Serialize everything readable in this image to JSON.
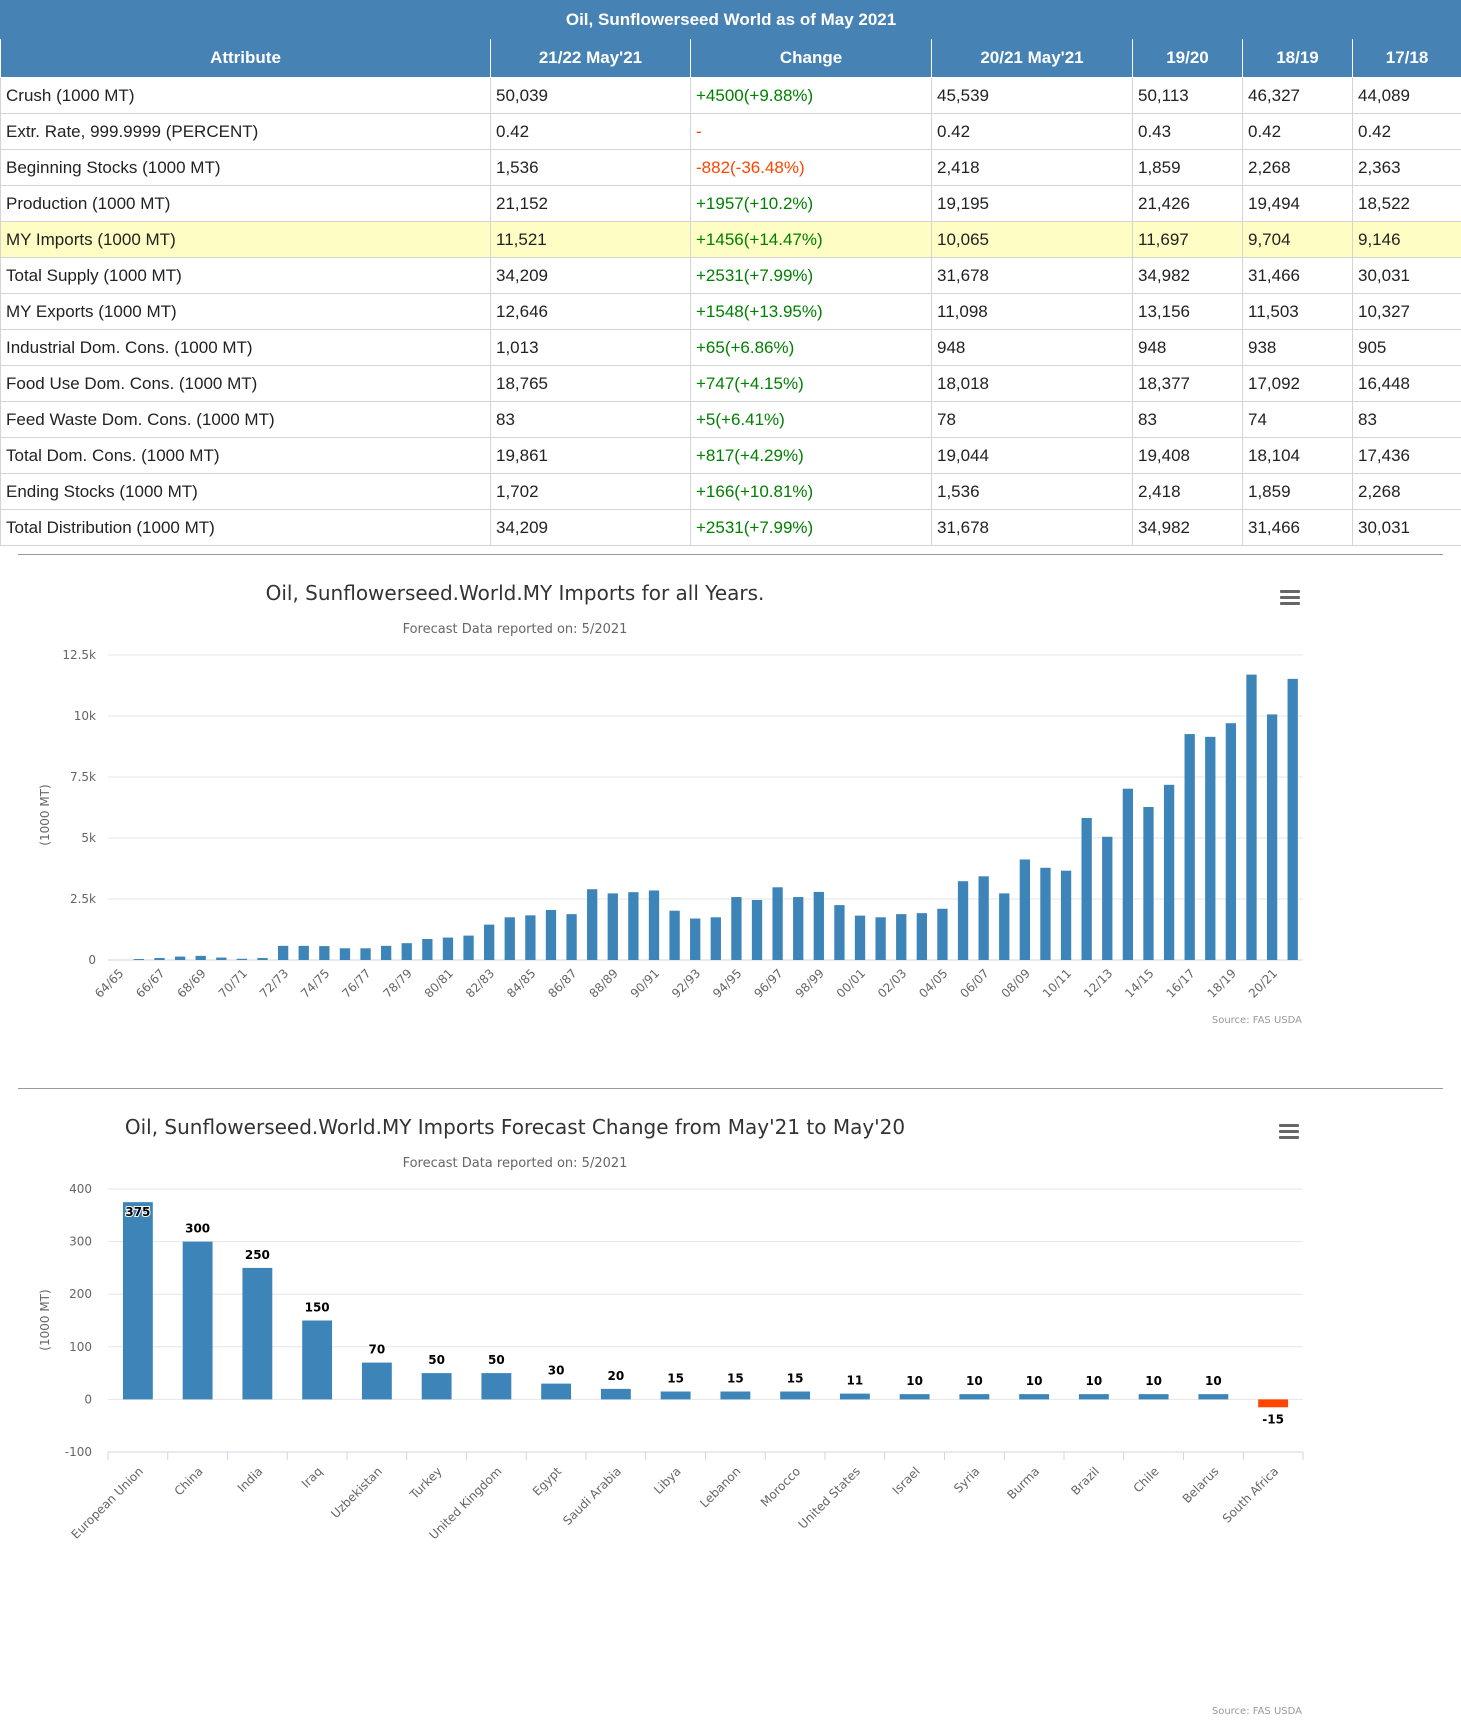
{
  "table": {
    "caption": "Oil, Sunflowerseed World as of May 2021",
    "headers": [
      "Attribute",
      "21/22 May'21",
      "Change",
      "20/21 May'21",
      "19/20",
      "18/19",
      "17/18"
    ],
    "rows": [
      {
        "attribute": "Crush (1000 MT)",
        "c2122": "50,039",
        "change": "+4500(+9.88%)",
        "dir": "pos",
        "c2021": "45,539",
        "c1920": "50,113",
        "c1819": "46,327",
        "c1718": "44,089"
      },
      {
        "attribute": "Extr. Rate, 999.9999 (PERCENT)",
        "c2122": "0.42",
        "change": "-",
        "dir": "neg",
        "c2021": "0.42",
        "c1920": "0.43",
        "c1819": "0.42",
        "c1718": "0.42"
      },
      {
        "attribute": "Beginning Stocks (1000 MT)",
        "c2122": "1,536",
        "change": "-882(-36.48%)",
        "dir": "neg",
        "c2021": "2,418",
        "c1920": "1,859",
        "c1819": "2,268",
        "c1718": "2,363"
      },
      {
        "attribute": "Production (1000 MT)",
        "c2122": "21,152",
        "change": "+1957(+10.2%)",
        "dir": "pos",
        "c2021": "19,195",
        "c1920": "21,426",
        "c1819": "19,494",
        "c1718": "18,522"
      },
      {
        "attribute": "MY Imports (1000 MT)",
        "c2122": "11,521",
        "change": "+1456(+14.47%)",
        "dir": "pos",
        "c2021": "10,065",
        "c1920": "11,697",
        "c1819": "9,704",
        "c1718": "9,146",
        "highlight": true
      },
      {
        "attribute": "Total Supply (1000 MT)",
        "c2122": "34,209",
        "change": "+2531(+7.99%)",
        "dir": "pos",
        "c2021": "31,678",
        "c1920": "34,982",
        "c1819": "31,466",
        "c1718": "30,031"
      },
      {
        "attribute": "MY Exports (1000 MT)",
        "c2122": "12,646",
        "change": "+1548(+13.95%)",
        "dir": "pos",
        "c2021": "11,098",
        "c1920": "13,156",
        "c1819": "11,503",
        "c1718": "10,327"
      },
      {
        "attribute": "Industrial Dom. Cons. (1000 MT)",
        "c2122": "1,013",
        "change": "+65(+6.86%)",
        "dir": "pos",
        "c2021": "948",
        "c1920": "948",
        "c1819": "938",
        "c1718": "905"
      },
      {
        "attribute": "Food Use Dom. Cons. (1000 MT)",
        "c2122": "18,765",
        "change": "+747(+4.15%)",
        "dir": "pos",
        "c2021": "18,018",
        "c1920": "18,377",
        "c1819": "17,092",
        "c1718": "16,448"
      },
      {
        "attribute": "Feed Waste Dom. Cons. (1000 MT)",
        "c2122": "83",
        "change": "+5(+6.41%)",
        "dir": "pos",
        "c2021": "78",
        "c1920": "83",
        "c1819": "74",
        "c1718": "83"
      },
      {
        "attribute": "Total Dom. Cons. (1000 MT)",
        "c2122": "19,861",
        "change": "+817(+4.29%)",
        "dir": "pos",
        "c2021": "19,044",
        "c1920": "19,408",
        "c1819": "18,104",
        "c1718": "17,436"
      },
      {
        "attribute": "Ending Stocks (1000 MT)",
        "c2122": "1,702",
        "change": "+166(+10.81%)",
        "dir": "pos",
        "c2021": "1,536",
        "c1920": "2,418",
        "c1819": "1,859",
        "c1718": "2,268"
      },
      {
        "attribute": "Total Distribution (1000 MT)",
        "c2122": "34,209",
        "change": "+2531(+7.99%)",
        "dir": "pos",
        "c2021": "31,678",
        "c1920": "34,982",
        "c1819": "31,466",
        "c1718": "30,031"
      }
    ]
  },
  "chart_data": [
    {
      "type": "bar",
      "title": "Oil, Sunflowerseed.World.MY Imports for all Years.",
      "subtitle": "Forecast Data reported on: 5/2021",
      "ylabel": "(1000 MT)",
      "xlabel": "",
      "ylim": [
        0,
        12500
      ],
      "yticks": [
        0,
        2500,
        5000,
        7500,
        10000,
        12500
      ],
      "ytick_labels": [
        "0",
        "2.5k",
        "5k",
        "7.5k",
        "10k",
        "12.5k"
      ],
      "credits": "Source: FAS USDA",
      "color": "#3d85b8",
      "grid": true,
      "legend": "none",
      "categories": [
        "64/65",
        "65/66",
        "66/67",
        "67/68",
        "68/69",
        "69/70",
        "70/71",
        "71/72",
        "72/73",
        "73/74",
        "74/75",
        "75/76",
        "76/77",
        "77/78",
        "78/79",
        "79/80",
        "80/81",
        "81/82",
        "82/83",
        "83/84",
        "84/85",
        "85/86",
        "86/87",
        "87/88",
        "88/89",
        "89/90",
        "90/91",
        "91/92",
        "92/93",
        "93/94",
        "94/95",
        "95/96",
        "96/97",
        "97/98",
        "98/99",
        "99/00",
        "00/01",
        "01/02",
        "02/03",
        "03/04",
        "04/05",
        "05/06",
        "06/07",
        "07/08",
        "08/09",
        "09/10",
        "10/11",
        "11/12",
        "12/13",
        "13/14",
        "14/15",
        "15/16",
        "16/17",
        "17/18",
        "18/19",
        "19/20",
        "20/21",
        "21/22"
      ],
      "tick_labels": [
        "64/65",
        "66/67",
        "68/69",
        "70/71",
        "72/73",
        "74/75",
        "76/77",
        "78/79",
        "80/81",
        "82/83",
        "84/85",
        "86/87",
        "88/89",
        "90/91",
        "92/93",
        "94/95",
        "96/97",
        "98/99",
        "00/01",
        "02/03",
        "04/05",
        "06/07",
        "08/09",
        "10/11",
        "12/13",
        "14/15",
        "16/17",
        "18/19",
        "20/21"
      ],
      "values": [
        0,
        40,
        80,
        140,
        170,
        100,
        50,
        80,
        580,
        580,
        570,
        480,
        480,
        580,
        690,
        860,
        920,
        1000,
        1450,
        1750,
        1830,
        2050,
        1880,
        2900,
        2730,
        2780,
        2850,
        2020,
        1700,
        1750,
        2580,
        2460,
        2980,
        2580,
        2790,
        2250,
        1820,
        1750,
        1880,
        1920,
        2100,
        3230,
        3430,
        2730,
        4120,
        3780,
        3660,
        5820,
        5050,
        7020,
        6270,
        7180,
        9260,
        9146,
        9704,
        11697,
        10065,
        11521
      ]
    },
    {
      "type": "bar",
      "title": "Oil, Sunflowerseed.World.MY Imports Forecast Change from May'21 to May'20",
      "subtitle": "Forecast Data reported on: 5/2021",
      "ylabel": "(1000 MT)",
      "xlabel": "",
      "ylim": [
        -100,
        400
      ],
      "yticks": [
        -100,
        0,
        100,
        200,
        300,
        400
      ],
      "ytick_labels": [
        "-100",
        "0",
        "100",
        "200",
        "300",
        "400"
      ],
      "credits": "Source: FAS USDA",
      "color": "#3d85b8",
      "negative_color": "#ff4500",
      "grid": true,
      "legend": "none",
      "categories": [
        "European Union",
        "China",
        "India",
        "Iraq",
        "Uzbekistan",
        "Turkey",
        "United Kingdom",
        "Egypt",
        "Saudi Arabia",
        "Libya",
        "Lebanon",
        "Morocco",
        "United States",
        "Israel",
        "Syria",
        "Burma",
        "Brazil",
        "Chile",
        "Belarus",
        "South Africa"
      ],
      "values": [
        375,
        300,
        250,
        150,
        70,
        50,
        50,
        30,
        20,
        15,
        15,
        15,
        11,
        10,
        10,
        10,
        10,
        10,
        10,
        -15
      ],
      "data_labels": [
        "375",
        "300",
        "250",
        "150",
        "70",
        "50",
        "50",
        "30",
        "20",
        "15",
        "15",
        "15",
        "11",
        "10",
        "10",
        "10",
        "10",
        "10",
        "10",
        "-15"
      ]
    }
  ]
}
